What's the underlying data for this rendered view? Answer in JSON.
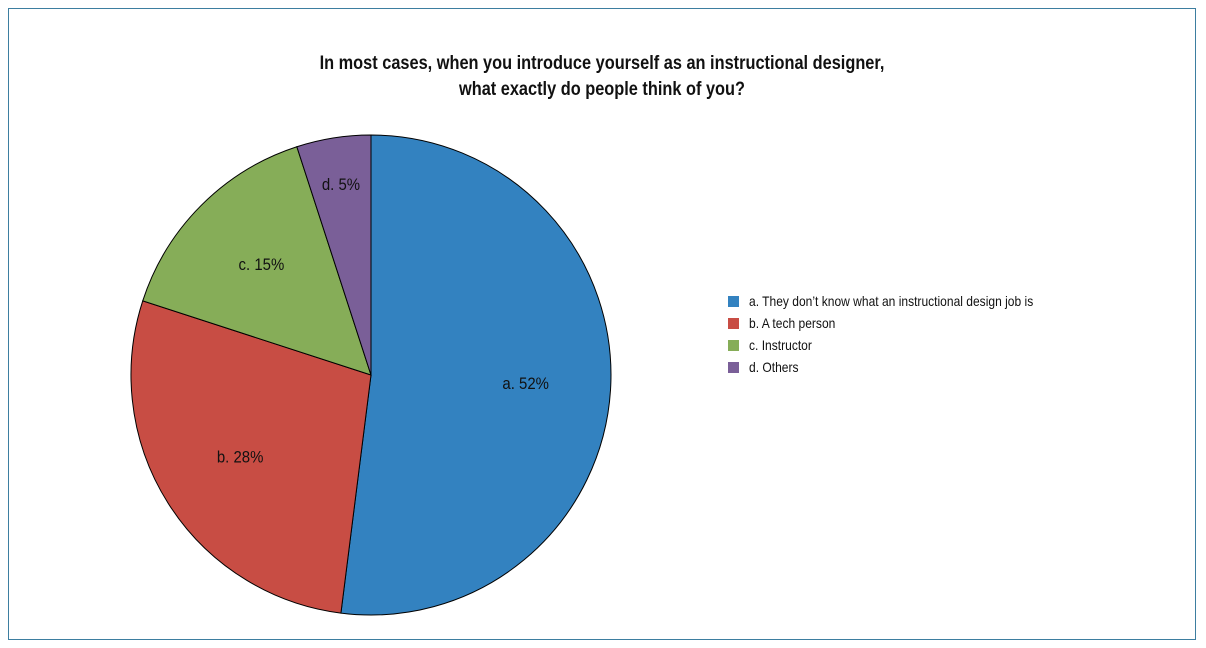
{
  "chart_data": {
    "type": "pie",
    "title_lines": [
      "In most cases, when you introduce yourself as an instructional designer,",
      "what exactly do people think of you?"
    ],
    "slices": [
      {
        "label": "a. They don’t know what an instructional design job is",
        "data_label": "a. 52%",
        "value": 52,
        "color": "#3382c0"
      },
      {
        "label": "b. A tech person",
        "data_label": "b. 28%",
        "value": 28,
        "color": "#c84d44"
      },
      {
        "label": "c. Instructor",
        "data_label": "c. 15%",
        "value": 15,
        "color": "#86ad58"
      },
      {
        "label": "d. Others",
        "data_label": "d. 5%",
        "value": 5,
        "color": "#7a5f98"
      }
    ],
    "legend_position": "right"
  }
}
